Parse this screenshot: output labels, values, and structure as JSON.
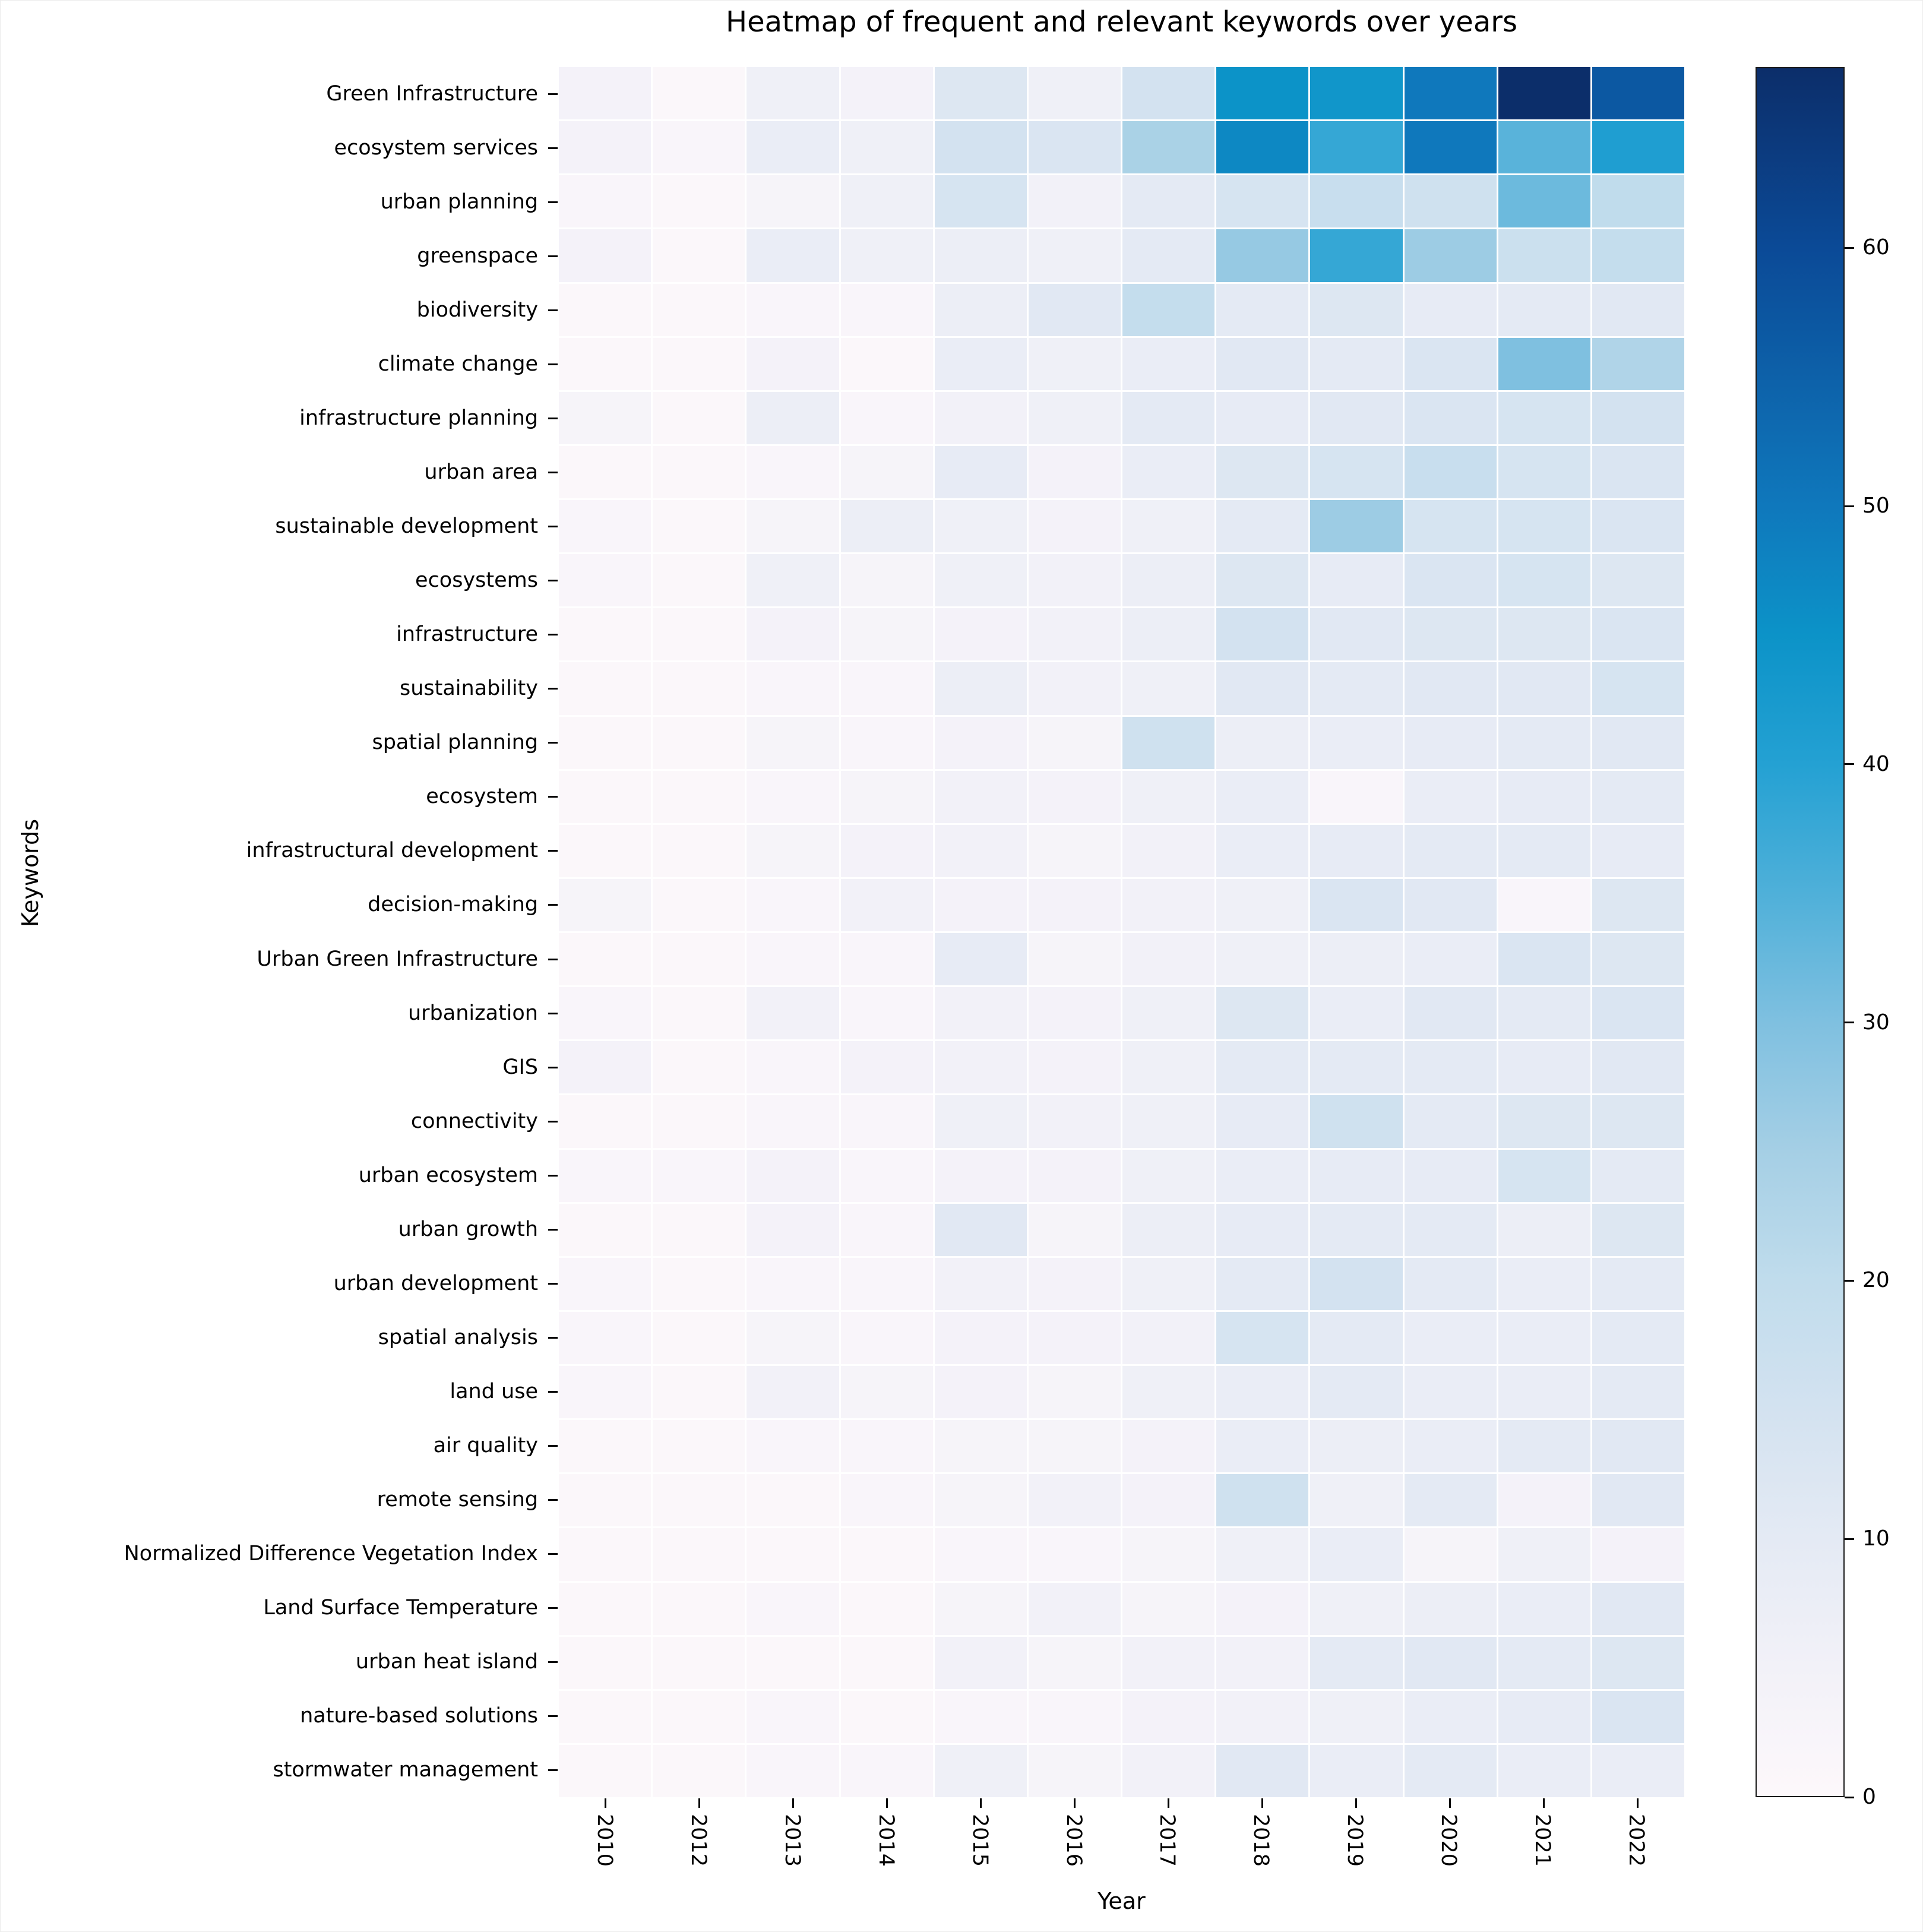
{
  "title": "Heatmap of frequent and relevant keywords over years",
  "axes": {
    "xlabel": "Year",
    "ylabel": "Keywords"
  },
  "chart_data": {
    "type": "heatmap",
    "x": [
      "2010",
      "2012",
      "2013",
      "2014",
      "2015",
      "2016",
      "2017",
      "2018",
      "2019",
      "2020",
      "2021",
      "2022"
    ],
    "y": [
      "Green Infrastructure",
      "ecosystem services",
      "urban planning",
      "greenspace",
      "biodiversity",
      "climate change",
      "infrastructure planning",
      "urban area",
      "sustainable development",
      "ecosystems",
      "infrastructure",
      "sustainability",
      "spatial planning",
      "ecosystem",
      "infrastructural development",
      "decision-making",
      "Urban Green Infrastructure",
      "urbanization",
      "GIS",
      "connectivity",
      "urban ecosystem",
      "urban growth",
      "urban development",
      "spatial analysis",
      "land use",
      "air quality",
      "remote sensing",
      "Normalized Difference Vegetation Index",
      "Land Surface Temperature",
      "urban heat island",
      "nature-based solutions",
      "stormwater management"
    ],
    "values": [
      [
        4,
        1,
        6,
        4,
        12,
        6,
        15,
        45,
        44,
        50,
        67,
        57
      ],
      [
        4,
        2,
        8,
        6,
        15,
        13,
        24,
        47,
        38,
        50,
        34,
        41
      ],
      [
        2,
        1,
        3,
        6,
        14,
        5,
        10,
        14,
        18,
        16,
        32,
        20
      ],
      [
        4,
        1,
        8,
        6,
        7,
        6,
        10,
        27,
        38,
        26,
        17,
        19
      ],
      [
        1,
        1,
        2,
        2,
        7,
        11,
        19,
        10,
        12,
        9,
        10,
        11
      ],
      [
        1,
        1,
        4,
        1,
        8,
        6,
        8,
        11,
        10,
        13,
        30,
        23
      ],
      [
        3,
        1,
        7,
        2,
        5,
        6,
        10,
        9,
        11,
        13,
        14,
        15
      ],
      [
        1,
        1,
        2,
        3,
        9,
        4,
        8,
        12,
        14,
        18,
        14,
        13
      ],
      [
        2,
        1,
        3,
        7,
        6,
        4,
        6,
        10,
        26,
        14,
        14,
        13
      ],
      [
        2,
        1,
        6,
        3,
        6,
        5,
        7,
        12,
        9,
        13,
        14,
        12
      ],
      [
        1,
        1,
        4,
        3,
        4,
        5,
        7,
        15,
        11,
        12,
        12,
        13
      ],
      [
        1,
        1,
        2,
        2,
        7,
        5,
        6,
        11,
        10,
        11,
        11,
        14
      ],
      [
        1,
        1,
        3,
        2,
        4,
        3,
        16,
        7,
        8,
        9,
        10,
        11
      ],
      [
        1,
        1,
        2,
        3,
        5,
        4,
        6,
        8,
        2,
        8,
        9,
        10
      ],
      [
        1,
        1,
        3,
        4,
        5,
        3,
        5,
        8,
        9,
        10,
        10,
        9
      ],
      [
        3,
        1,
        2,
        5,
        4,
        4,
        5,
        6,
        13,
        11,
        2,
        12
      ],
      [
        1,
        1,
        2,
        2,
        9,
        3,
        5,
        6,
        7,
        8,
        13,
        12
      ],
      [
        2,
        1,
        5,
        2,
        5,
        4,
        6,
        12,
        8,
        11,
        10,
        13
      ],
      [
        4,
        1,
        2,
        4,
        5,
        4,
        6,
        10,
        10,
        10,
        9,
        11
      ],
      [
        1,
        1,
        2,
        2,
        6,
        5,
        6,
        9,
        16,
        10,
        12,
        12
      ],
      [
        2,
        2,
        4,
        2,
        4,
        4,
        6,
        8,
        9,
        9,
        14,
        10
      ],
      [
        1,
        1,
        4,
        2,
        11,
        3,
        7,
        9,
        10,
        10,
        7,
        12
      ],
      [
        2,
        1,
        2,
        2,
        5,
        4,
        6,
        10,
        15,
        10,
        8,
        10
      ],
      [
        2,
        1,
        3,
        2,
        4,
        4,
        5,
        14,
        10,
        8,
        8,
        10
      ],
      [
        2,
        1,
        5,
        3,
        4,
        3,
        6,
        8,
        10,
        8,
        8,
        10
      ],
      [
        1,
        1,
        2,
        2,
        3,
        3,
        4,
        8,
        7,
        8,
        10,
        11
      ],
      [
        1,
        1,
        1,
        2,
        3,
        5,
        4,
        16,
        6,
        10,
        4,
        11
      ],
      [
        1,
        1,
        1,
        1,
        2,
        2,
        3,
        6,
        8,
        3,
        6,
        4
      ],
      [
        1,
        1,
        2,
        1,
        3,
        5,
        3,
        4,
        6,
        7,
        8,
        11
      ],
      [
        1,
        1,
        1,
        1,
        5,
        3,
        5,
        5,
        10,
        11,
        10,
        12
      ],
      [
        1,
        1,
        2,
        1,
        2,
        2,
        4,
        5,
        6,
        8,
        9,
        13
      ],
      [
        1,
        1,
        2,
        2,
        6,
        3,
        5,
        11,
        8,
        10,
        8,
        8
      ]
    ],
    "vmin": 0,
    "vmax": 67,
    "grid": false,
    "colorbar": {
      "position": "right",
      "ticks": [
        0,
        10,
        20,
        30,
        40,
        50,
        60
      ]
    },
    "colormap": {
      "name": "white-to-navy-blues",
      "anchors": [
        {
          "value": 0,
          "color": "#fdf8fb"
        },
        {
          "value": 5,
          "color": "#f2f1f8"
        },
        {
          "value": 10,
          "color": "#e4eaf4"
        },
        {
          "value": 15,
          "color": "#d3e2f0"
        },
        {
          "value": 20,
          "color": "#c0dcec"
        },
        {
          "value": 25,
          "color": "#a5cfe5"
        },
        {
          "value": 30,
          "color": "#7fc0e0"
        },
        {
          "value": 35,
          "color": "#4fb0d9"
        },
        {
          "value": 40,
          "color": "#24a1d3"
        },
        {
          "value": 45,
          "color": "#0c93c8"
        },
        {
          "value": 50,
          "color": "#0f78bc"
        },
        {
          "value": 55,
          "color": "#0d61a9"
        },
        {
          "value": 60,
          "color": "#0b4a97"
        },
        {
          "value": 67,
          "color": "#0c2e6a"
        }
      ]
    }
  }
}
